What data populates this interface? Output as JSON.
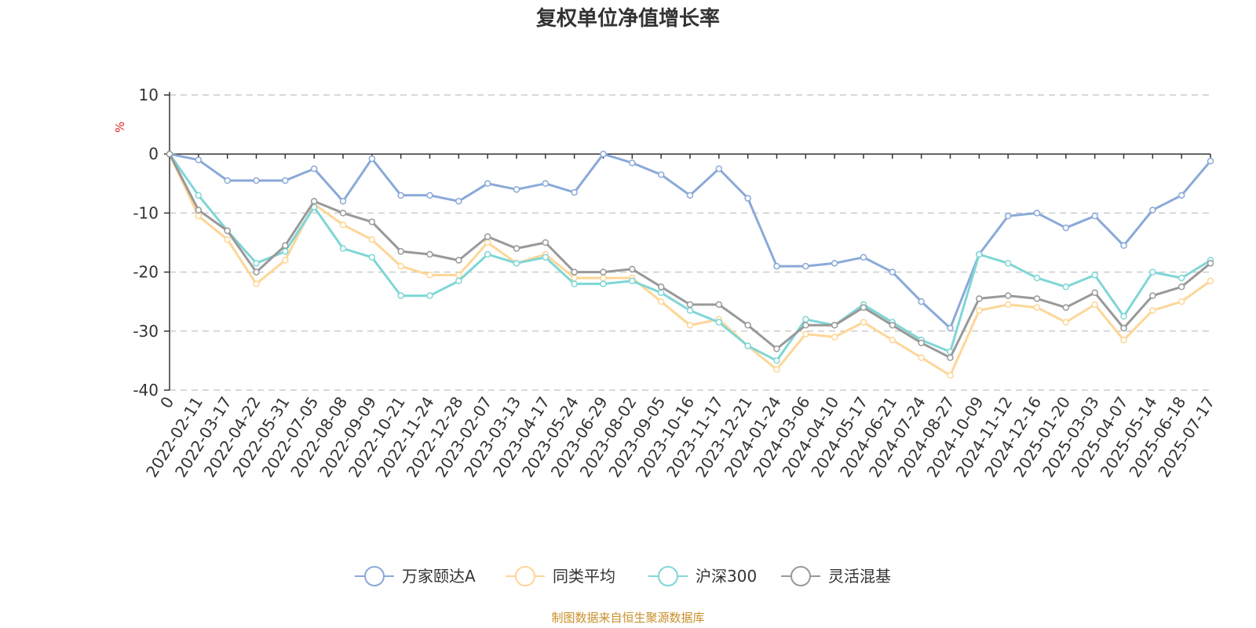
{
  "chart_data": {
    "type": "line",
    "title": "复权单位净值增长率",
    "ylabel": "%",
    "source": "制图数据来自恒生聚源数据库",
    "ylim": [
      -40,
      10
    ],
    "yticks": [
      10,
      0,
      -10,
      -20,
      -30,
      -40
    ],
    "grid": true,
    "legend_position": "bottom",
    "x": [
      "0",
      "2022-02-11",
      "2022-03-17",
      "2022-04-22",
      "2022-05-31",
      "2022-07-05",
      "2022-08-08",
      "2022-09-09",
      "2022-10-21",
      "2022-11-24",
      "2022-12-28",
      "2023-02-07",
      "2023-03-13",
      "2023-04-17",
      "2023-05-24",
      "2023-06-29",
      "2023-08-02",
      "2023-09-05",
      "2023-10-16",
      "2023-11-17",
      "2023-12-21",
      "2024-01-24",
      "2024-03-06",
      "2024-04-10",
      "2024-05-17",
      "2024-06-21",
      "2024-07-24",
      "2024-08-27",
      "2024-10-09",
      "2024-11-12",
      "2024-12-16",
      "2025-01-20",
      "2025-03-03",
      "2025-04-07",
      "2025-05-14",
      "2025-06-18",
      "2025-07-17"
    ],
    "series": [
      {
        "name": "万家颐达A",
        "color": "#8aa9d8",
        "values": [
          0,
          -1,
          -4.5,
          -4.5,
          -4.5,
          -2.5,
          -8,
          -0.8,
          -7,
          -7,
          -8,
          -5,
          -6,
          -5,
          -6.5,
          0,
          -1.5,
          -3.5,
          -7,
          -2.5,
          -7.5,
          -19,
          -19,
          -18.5,
          -17.5,
          -20,
          -25,
          -29.5,
          -17,
          -10.5,
          -10,
          -12.5,
          -10.5,
          -15.5,
          -9.5,
          -7,
          -1.2
        ]
      },
      {
        "name": "同类平均",
        "color": "#fdd697",
        "values": [
          0,
          -10.5,
          -14.5,
          -22,
          -18,
          -8.5,
          -12,
          -14.5,
          -19,
          -20.5,
          -20.5,
          -15,
          -18.5,
          -17,
          -21,
          -21,
          -21,
          -25,
          -29,
          -28,
          -32.5,
          -36.5,
          -30.5,
          -31,
          -28.5,
          -31.5,
          -34.5,
          -37.5,
          -26.5,
          -25.5,
          -26,
          -28.5,
          -25.5,
          -31.5,
          -26.5,
          -25,
          -21.5
        ]
      },
      {
        "name": "沪深300",
        "color": "#7fd6d6",
        "values": [
          0,
          -7,
          -13,
          -18.5,
          -16.5,
          -9,
          -16,
          -17.5,
          -24,
          -24,
          -21.5,
          -17,
          -18.5,
          -17.5,
          -22,
          -22,
          -21.5,
          -23.5,
          -26.5,
          -28.5,
          -32.5,
          -35,
          -28,
          -29,
          -25.5,
          -28.5,
          -31.5,
          -33.5,
          -17,
          -18.5,
          -21,
          -22.5,
          -20.5,
          -27.5,
          -20,
          -21,
          -18
        ]
      },
      {
        "name": "灵活混基",
        "color": "#999999",
        "values": [
          0,
          -9.5,
          -13,
          -20,
          -15.5,
          -8,
          -10,
          -11.5,
          -16.5,
          -17,
          -18,
          -14,
          -16,
          -15,
          -20,
          -20,
          -19.5,
          -22.5,
          -25.5,
          -25.5,
          -29,
          -33,
          -29,
          -29,
          -26,
          -29,
          -32,
          -34.5,
          -24.5,
          -24,
          -24.5,
          -26,
          -23.5,
          -29.5,
          -24,
          -22.5,
          -18.5
        ]
      }
    ]
  }
}
